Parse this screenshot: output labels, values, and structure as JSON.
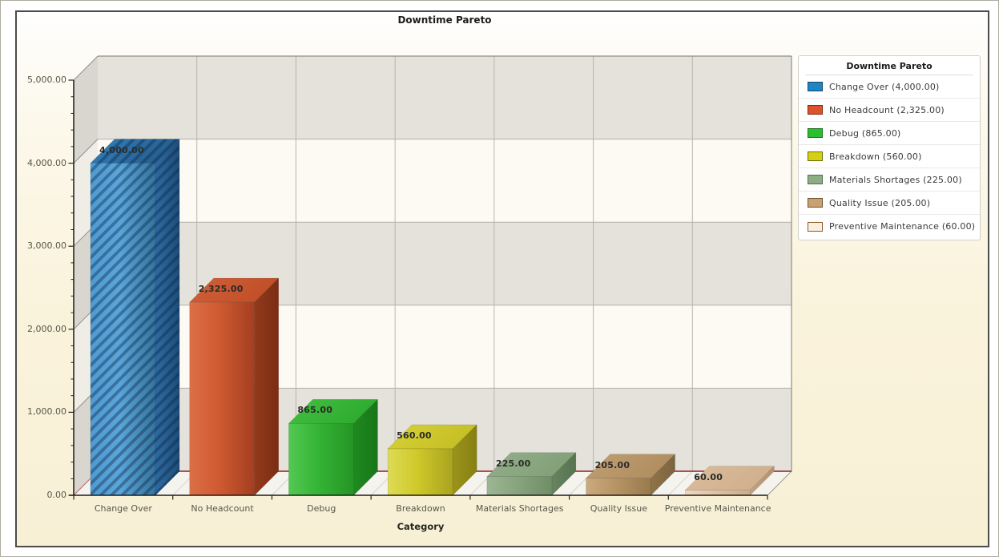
{
  "frame": {
    "panel_border": "#4c4c4c",
    "background_top": "#ffffff",
    "background_bottom": "#f8f0d5"
  },
  "chart_data": {
    "type": "bar",
    "projection": "3d",
    "title": "Downtime Pareto",
    "xlabel": "Category",
    "ylabel": "",
    "ylim": [
      0,
      5000
    ],
    "y_major_step": 1000,
    "y_minor_step": 200,
    "y_tick_labels": [
      "0.00",
      "1,000.00",
      "2,000.00",
      "3,000.00",
      "4,000.00",
      "5,000.00"
    ],
    "grid": "alternating-horizontal-bands",
    "legend_position": "right",
    "categories": [
      "Change Over",
      "No Headcount",
      "Debug",
      "Breakdown",
      "Materials Shortages",
      "Quality Issue",
      "Preventive Maintenance"
    ],
    "values": [
      4000,
      2325,
      865,
      560,
      225,
      205,
      60
    ],
    "value_labels": [
      "4,000.00",
      "2,325.00",
      "865.00",
      "560.00",
      "225.00",
      "205.00",
      "60.00"
    ],
    "bars": [
      {
        "slug": "change-over",
        "hatch": true,
        "front": [
          "#4f9bd2",
          "#5aa5da",
          "#35749e"
        ],
        "top": [
          "#3581bb",
          "#235d90"
        ],
        "side": [
          "#2d6ba3",
          "#1e4d79"
        ]
      },
      {
        "slug": "no-headcount",
        "hatch": false,
        "front": [
          "#dc6f46",
          "#d05a32",
          "#a33f1f"
        ],
        "top": [
          "#d2603a",
          "#c04e27"
        ],
        "side": [
          "#93391c",
          "#7b2d13"
        ]
      },
      {
        "slug": "debug",
        "hatch": false,
        "front": [
          "#53c953",
          "#35b435",
          "#259525"
        ],
        "top": [
          "#43c043",
          "#2eab2e"
        ],
        "side": [
          "#1f8a1f",
          "#177617"
        ]
      },
      {
        "slug": "breakdown",
        "hatch": false,
        "front": [
          "#dedb55",
          "#cfc92a",
          "#a9a31f"
        ],
        "top": [
          "#d7d236",
          "#c5bf26"
        ],
        "side": [
          "#9b941b",
          "#868012"
        ]
      },
      {
        "slug": "materials-shortages",
        "hatch": false,
        "front": [
          "#9db593",
          "#88a47f",
          "#6f8d67"
        ],
        "top": [
          "#95af8c",
          "#80a077"
        ],
        "side": [
          "#66845f",
          "#577350"
        ]
      },
      {
        "slug": "quality-issue",
        "hatch": false,
        "front": [
          "#cba97f",
          "#b79464",
          "#987a4d"
        ],
        "top": [
          "#c09f73",
          "#af8d5f"
        ],
        "side": [
          "#8f7349",
          "#7c6340"
        ]
      },
      {
        "slug": "preventive-maintenance",
        "hatch": false,
        "front": [
          "#eed9c0",
          "#e0c3a3",
          "#ccad8b"
        ],
        "top": [
          "#dcbd9c",
          "#cfaf8c"
        ],
        "side": [
          "#c2a383",
          "#b19272"
        ]
      }
    ]
  },
  "legend": {
    "title": "Downtime Pareto",
    "items": [
      {
        "label": "Change Over (4,000.00)",
        "swatch": "#1f86c6",
        "swatch_border": "#17466a"
      },
      {
        "label": "No Headcount (2,325.00)",
        "swatch": "#e0522b",
        "swatch_border": "#7c2a11"
      },
      {
        "label": "Debug (865.00)",
        "swatch": "#2abf2f",
        "swatch_border": "#19701c"
      },
      {
        "label": "Breakdown (560.00)",
        "swatch": "#d5d014",
        "swatch_border": "#6f6c0c"
      },
      {
        "label": "Materials Shortages (225.00)",
        "swatch": "#8fad85",
        "swatch_border": "#516e4c"
      },
      {
        "label": "Quality Issue (205.00)",
        "swatch": "#c8a273",
        "swatch_border": "#6e532f"
      },
      {
        "label": "Preventive Maintenance (60.00)",
        "swatch": "#faeedd",
        "swatch_border": "#8c5a2e"
      }
    ]
  },
  "plot_colors": {
    "band_gray": "#e4e2da",
    "band_light": "#fcfaf2",
    "wall_gray": "#d8d6ce",
    "wall_light": "#efede5",
    "grid_line": "#b2afa7",
    "slot_line": "#b8b5ad",
    "outline": "#8f8f89",
    "floor": "#f5f3ee",
    "floor_slot_line": "#d5d3cc",
    "floor_back_edge": "#8e2121",
    "floor_left_edge": "#c46a6a",
    "floor_right_edge": "#9a9a94",
    "axis": "#1a1a1a",
    "tick": "#222222",
    "hatch": "rgba(13,38,66,0.40)"
  }
}
